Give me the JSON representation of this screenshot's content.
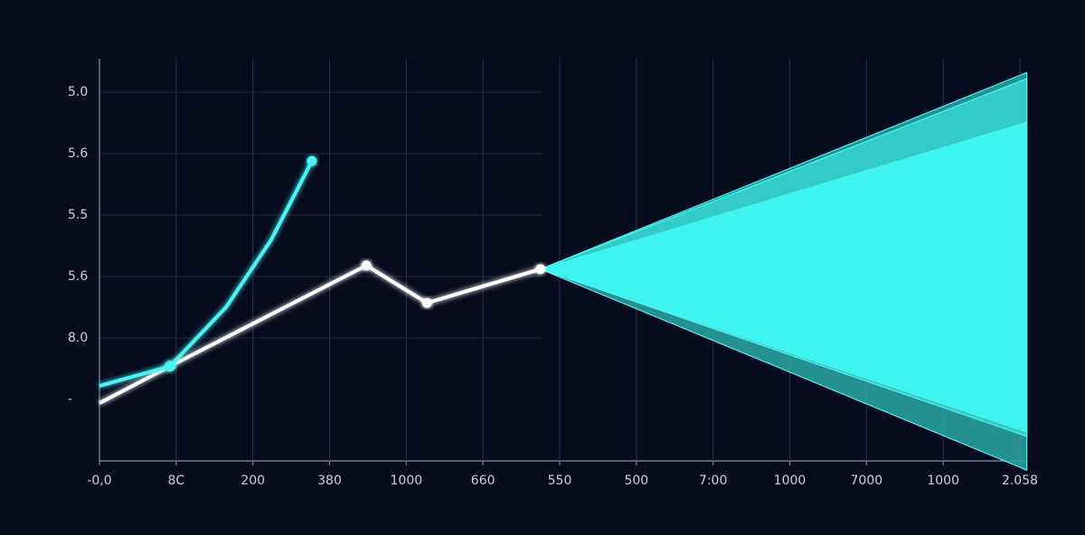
{
  "chart_data": {
    "type": "line",
    "xlim": [
      0,
      12
    ],
    "ylim": [
      0,
      6.5
    ],
    "xticks": [
      {
        "value": 0,
        "label": "-0,0"
      },
      {
        "value": 1,
        "label": "8C"
      },
      {
        "value": 2,
        "label": "200"
      },
      {
        "value": 3,
        "label": "380"
      },
      {
        "value": 4,
        "label": "1000"
      },
      {
        "value": 5,
        "label": "660"
      },
      {
        "value": 6,
        "label": "550"
      },
      {
        "value": 7,
        "label": "500"
      },
      {
        "value": 8,
        "label": "7:00"
      },
      {
        "value": 9,
        "label": "1000"
      },
      {
        "value": 10,
        "label": "7000"
      },
      {
        "value": 11,
        "label": "1000"
      },
      {
        "value": 12,
        "label": "2.058"
      }
    ],
    "yticks": [
      {
        "value": 1,
        "label": "-"
      },
      {
        "value": 2,
        "label": "8.0"
      },
      {
        "value": 3,
        "label": "5.6"
      },
      {
        "value": 4,
        "label": "5.5"
      },
      {
        "value": 5,
        "label": "5.6"
      },
      {
        "value": 6,
        "label": "5.0"
      }
    ],
    "grid": true,
    "series": [
      {
        "color": "#ffffff",
        "x": [
          0,
          0.92,
          3.48,
          4.27,
          5.75
        ],
        "values": [
          0.94,
          1.54,
          3.18,
          2.57,
          3.12
        ]
      },
      {
        "color": "#4ef2f2",
        "x": [
          0,
          0.92,
          1.65,
          2.24,
          2.77
        ],
        "values": [
          1.22,
          1.54,
          2.5,
          3.6,
          4.88
        ]
      }
    ],
    "areas": [
      {
        "color": "#2aa8a4",
        "x": [
          5.75,
          12.09
        ],
        "upper": [
          3.12,
          6.32
        ],
        "lower": [
          3.12,
          -0.15
        ]
      },
      {
        "color": "#36d6cf",
        "x": [
          5.75,
          12.09
        ],
        "upper": [
          3.12,
          6.22
        ],
        "lower": [
          3.12,
          0.4
        ]
      },
      {
        "color": "#3ffcf8",
        "x": [
          5.75,
          12.09
        ],
        "upper": [
          3.12,
          5.51
        ],
        "lower": [
          3.12,
          0.47
        ]
      }
    ]
  }
}
